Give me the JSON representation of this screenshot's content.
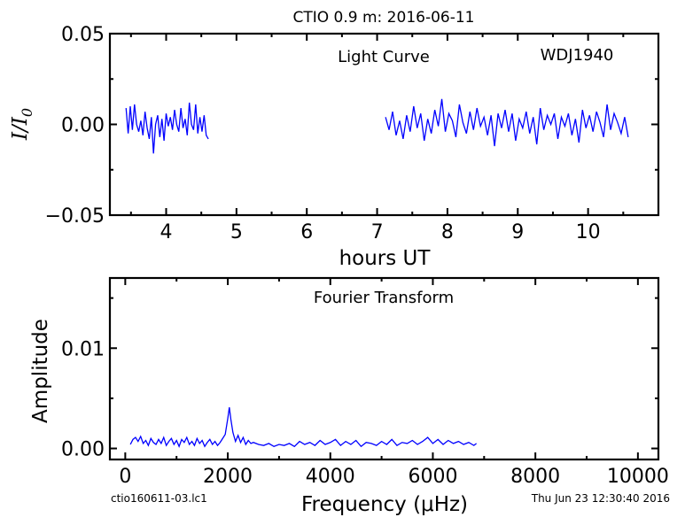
{
  "title": "CTIO 0.9 m:  2016-06-11",
  "footer": {
    "left": "ctio160611-03.lc1",
    "right": "Thu Jun 23 12:30:40 2016"
  },
  "chart_data": [
    {
      "type": "line",
      "name": "light-curve",
      "inner_label": "Light Curve",
      "object_label": "WDJ1940",
      "xlabel": "hours UT",
      "ylabel": "I/I0",
      "xlim": [
        3.2,
        11.0
      ],
      "ylim": [
        -0.05,
        0.05
      ],
      "x_ticks": [
        4,
        5,
        6,
        7,
        8,
        9,
        10
      ],
      "y_ticks": [
        -0.05,
        0.0,
        0.05
      ],
      "x_tick_labels": [
        "4",
        "5",
        "6",
        "7",
        "8",
        "9",
        "10"
      ],
      "y_tick_labels": [
        "−0.05",
        "0.00",
        "0.05"
      ],
      "x_minor_ticks": [
        3.5,
        4.5,
        5.5,
        6.5,
        7.5,
        8.5,
        9.5,
        10.5
      ],
      "y_minor_ticks": [
        -0.025,
        0.025
      ],
      "grid": false,
      "line_color": "#0000ff",
      "series": [
        {
          "x": [
            3.43,
            3.46,
            3.49,
            3.52,
            3.55,
            3.58,
            3.61,
            3.64,
            3.67,
            3.7,
            3.73,
            3.76,
            3.79,
            3.82,
            3.85,
            3.88,
            3.91,
            3.94,
            3.97,
            4.0,
            4.03,
            4.06,
            4.09,
            4.12,
            4.15,
            4.18,
            4.21,
            4.24,
            4.27,
            4.3,
            4.33,
            4.36,
            4.39,
            4.42,
            4.45,
            4.48,
            4.51,
            4.54,
            4.57,
            4.6
          ],
          "y": [
            0.009,
            -0.005,
            0.01,
            -0.003,
            0.011,
            0.0,
            -0.004,
            0.002,
            -0.006,
            0.007,
            -0.002,
            -0.008,
            0.004,
            -0.016,
            0.0,
            0.005,
            -0.007,
            0.003,
            -0.009,
            0.006,
            -0.001,
            0.004,
            -0.003,
            0.008,
            0.0,
            -0.004,
            0.009,
            -0.002,
            0.003,
            -0.006,
            0.012,
            0.0,
            -0.003,
            0.011,
            -0.005,
            0.004,
            -0.004,
            0.005,
            -0.006,
            -0.008
          ]
        },
        {
          "x": [
            7.12,
            7.17,
            7.22,
            7.27,
            7.32,
            7.37,
            7.42,
            7.47,
            7.52,
            7.57,
            7.62,
            7.67,
            7.72,
            7.77,
            7.82,
            7.87,
            7.92,
            7.97,
            8.02,
            8.07,
            8.12,
            8.17,
            8.22,
            8.27,
            8.32,
            8.37,
            8.42,
            8.47,
            8.52,
            8.57,
            8.62,
            8.67,
            8.72,
            8.77,
            8.82,
            8.87,
            8.92,
            8.97,
            9.02,
            9.07,
            9.12,
            9.17,
            9.22,
            9.27,
            9.32,
            9.37,
            9.42,
            9.47,
            9.52,
            9.57,
            9.62,
            9.67,
            9.72,
            9.77,
            9.82,
            9.87,
            9.92,
            9.97,
            10.02,
            10.07,
            10.12,
            10.17,
            10.22,
            10.27,
            10.32,
            10.37,
            10.42,
            10.47,
            10.52,
            10.57
          ],
          "y": [
            0.004,
            -0.003,
            0.007,
            -0.006,
            0.002,
            -0.008,
            0.005,
            -0.004,
            0.01,
            -0.002,
            0.006,
            -0.009,
            0.003,
            -0.005,
            0.008,
            -0.001,
            0.014,
            -0.004,
            0.006,
            0.002,
            -0.007,
            0.011,
            0.001,
            -0.005,
            0.007,
            -0.003,
            0.009,
            -0.001,
            0.004,
            -0.006,
            0.005,
            -0.012,
            0.006,
            -0.002,
            0.008,
            -0.004,
            0.006,
            -0.009,
            0.003,
            -0.002,
            0.007,
            -0.005,
            0.004,
            -0.011,
            0.009,
            -0.003,
            0.005,
            0.0,
            0.006,
            -0.008,
            0.004,
            -0.001,
            0.006,
            -0.006,
            0.003,
            -0.01,
            0.008,
            -0.002,
            0.005,
            -0.004,
            0.007,
            0.001,
            -0.007,
            0.011,
            -0.003,
            0.006,
            0.001,
            -0.005,
            0.004,
            -0.007
          ]
        }
      ]
    },
    {
      "type": "line",
      "name": "fourier-transform",
      "inner_label": "Fourier Transform",
      "xlabel": "Frequency (μHz)",
      "ylabel": "Amplitude",
      "xlim": [
        -300,
        10400
      ],
      "ylim": [
        -0.0011,
        0.017
      ],
      "x_ticks": [
        0,
        2000,
        4000,
        6000,
        8000,
        10000
      ],
      "y_ticks": [
        0.0,
        0.01
      ],
      "x_tick_labels": [
        "0",
        "2000",
        "4000",
        "6000",
        "8000",
        "10000"
      ],
      "y_tick_labels": [
        "0.00",
        "0.01"
      ],
      "x_minor_ticks": [
        1000,
        3000,
        5000,
        7000,
        9000
      ],
      "y_minor_ticks": [
        0.005,
        0.015
      ],
      "grid": false,
      "line_color": "#0000ff",
      "series": [
        {
          "x": [
            100,
            150,
            200,
            250,
            300,
            350,
            400,
            450,
            500,
            550,
            600,
            650,
            700,
            750,
            800,
            850,
            900,
            950,
            1000,
            1050,
            1100,
            1150,
            1200,
            1250,
            1300,
            1350,
            1400,
            1450,
            1500,
            1550,
            1600,
            1650,
            1700,
            1750,
            1800,
            1850,
            1900,
            1950,
            2000,
            2030,
            2060,
            2100,
            2150,
            2200,
            2250,
            2300,
            2350,
            2400,
            2450,
            2500,
            2600,
            2700,
            2800,
            2900,
            3000,
            3100,
            3200,
            3300,
            3400,
            3500,
            3600,
            3700,
            3800,
            3900,
            4000,
            4100,
            4200,
            4300,
            4400,
            4500,
            4600,
            4700,
            4800,
            4900,
            5000,
            5100,
            5200,
            5300,
            5400,
            5500,
            5600,
            5700,
            5800,
            5900,
            6000,
            6100,
            6200,
            6300,
            6400,
            6500,
            6600,
            6700,
            6800,
            6850
          ],
          "y": [
            0.0004,
            0.0009,
            0.0011,
            0.0007,
            0.0012,
            0.0005,
            0.0008,
            0.0003,
            0.001,
            0.0006,
            0.0004,
            0.0009,
            0.0005,
            0.0011,
            0.0003,
            0.0007,
            0.001,
            0.0004,
            0.0008,
            0.0002,
            0.0009,
            0.0006,
            0.0011,
            0.0004,
            0.0007,
            0.0003,
            0.001,
            0.0005,
            0.0008,
            0.0002,
            0.0006,
            0.0009,
            0.0004,
            0.0007,
            0.0003,
            0.0006,
            0.001,
            0.0014,
            0.003,
            0.0041,
            0.0029,
            0.0016,
            0.0007,
            0.0013,
            0.0006,
            0.0011,
            0.0004,
            0.0008,
            0.0005,
            0.0006,
            0.0004,
            0.0003,
            0.0005,
            0.0002,
            0.0004,
            0.0003,
            0.0005,
            0.0002,
            0.0007,
            0.0004,
            0.0006,
            0.0003,
            0.0008,
            0.0004,
            0.0006,
            0.0009,
            0.0003,
            0.0007,
            0.0004,
            0.0008,
            0.0002,
            0.0006,
            0.0005,
            0.0003,
            0.0007,
            0.0004,
            0.0009,
            0.0003,
            0.0006,
            0.0005,
            0.0008,
            0.0004,
            0.0007,
            0.0011,
            0.0005,
            0.0009,
            0.0004,
            0.0008,
            0.0005,
            0.0007,
            0.0004,
            0.0006,
            0.0003,
            0.0005
          ]
        }
      ]
    }
  ]
}
